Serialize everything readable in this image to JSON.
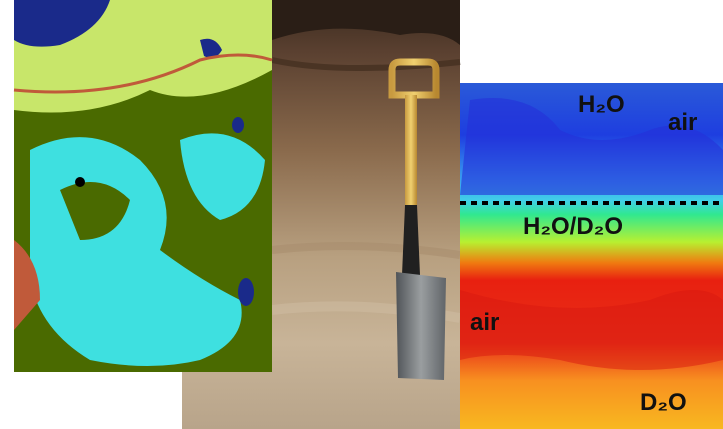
{
  "labels": [
    "H₂O",
    "air",
    "H₂O/D₂O",
    "air",
    "D₂O"
  ]
}
